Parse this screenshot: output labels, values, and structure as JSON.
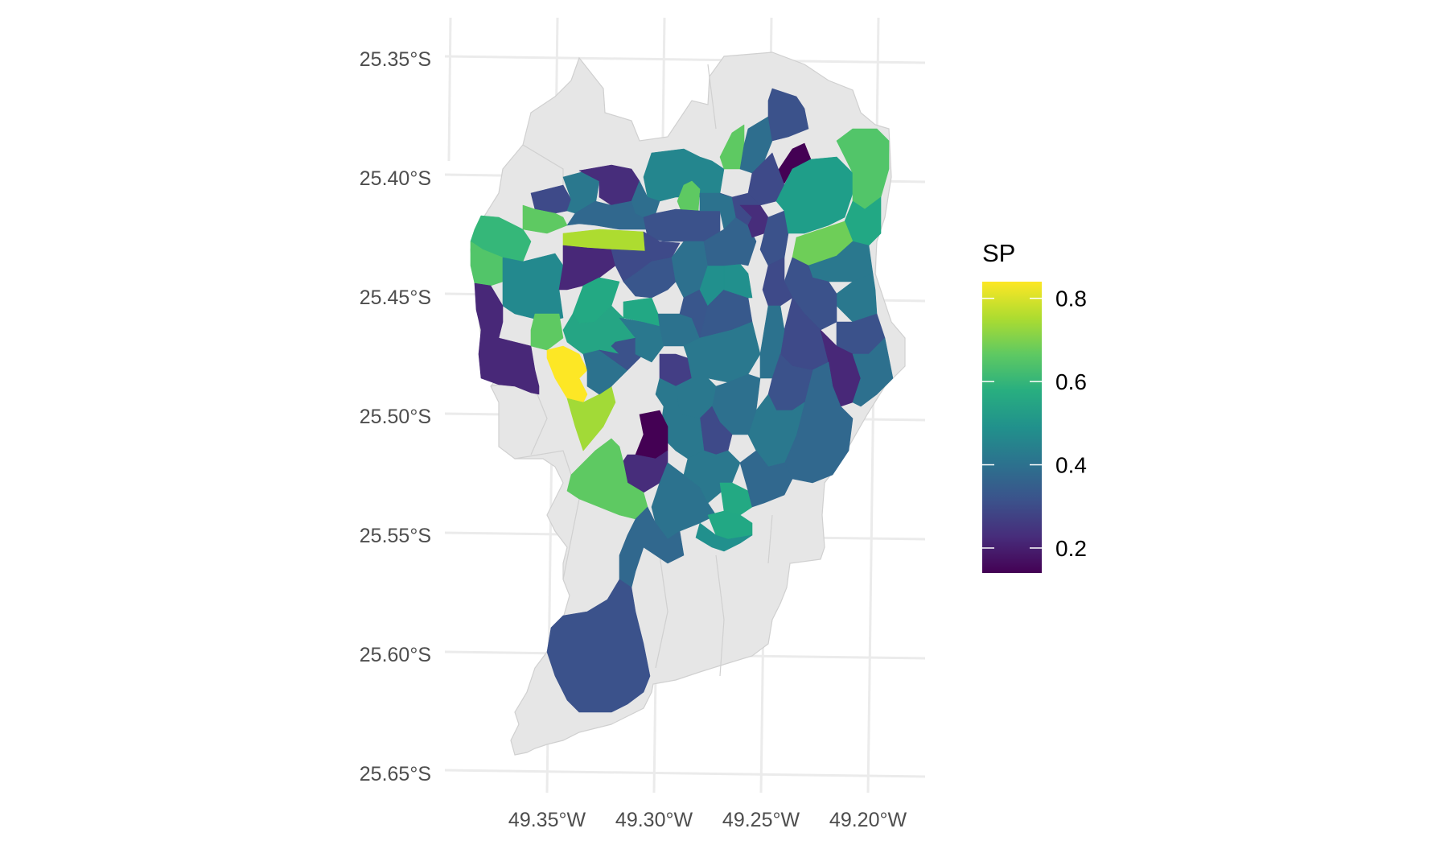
{
  "map": {
    "type": "choropleth",
    "lat_ticks": [
      "25.35°S",
      "25.40°S",
      "25.45°S",
      "25.50°S",
      "25.55°S",
      "25.60°S",
      "25.65°S"
    ],
    "lon_ticks": [
      "49.35°W",
      "49.30°W",
      "49.25°W",
      "49.20°W"
    ],
    "background_fill": "#e6e6e6",
    "grid": true,
    "legend": {
      "title": "SP",
      "labels": [
        "0.8",
        "0.6",
        "0.4",
        "0.2"
      ],
      "breaks": [
        0.8,
        0.6,
        0.4,
        0.2
      ],
      "range": [
        0.14,
        0.84
      ],
      "placement": "right",
      "palette": [
        "#440154",
        "#472d7b",
        "#3b528b",
        "#2c728e",
        "#21918c",
        "#28ae80",
        "#5ec962",
        "#addc30",
        "#fde725"
      ]
    }
  }
}
